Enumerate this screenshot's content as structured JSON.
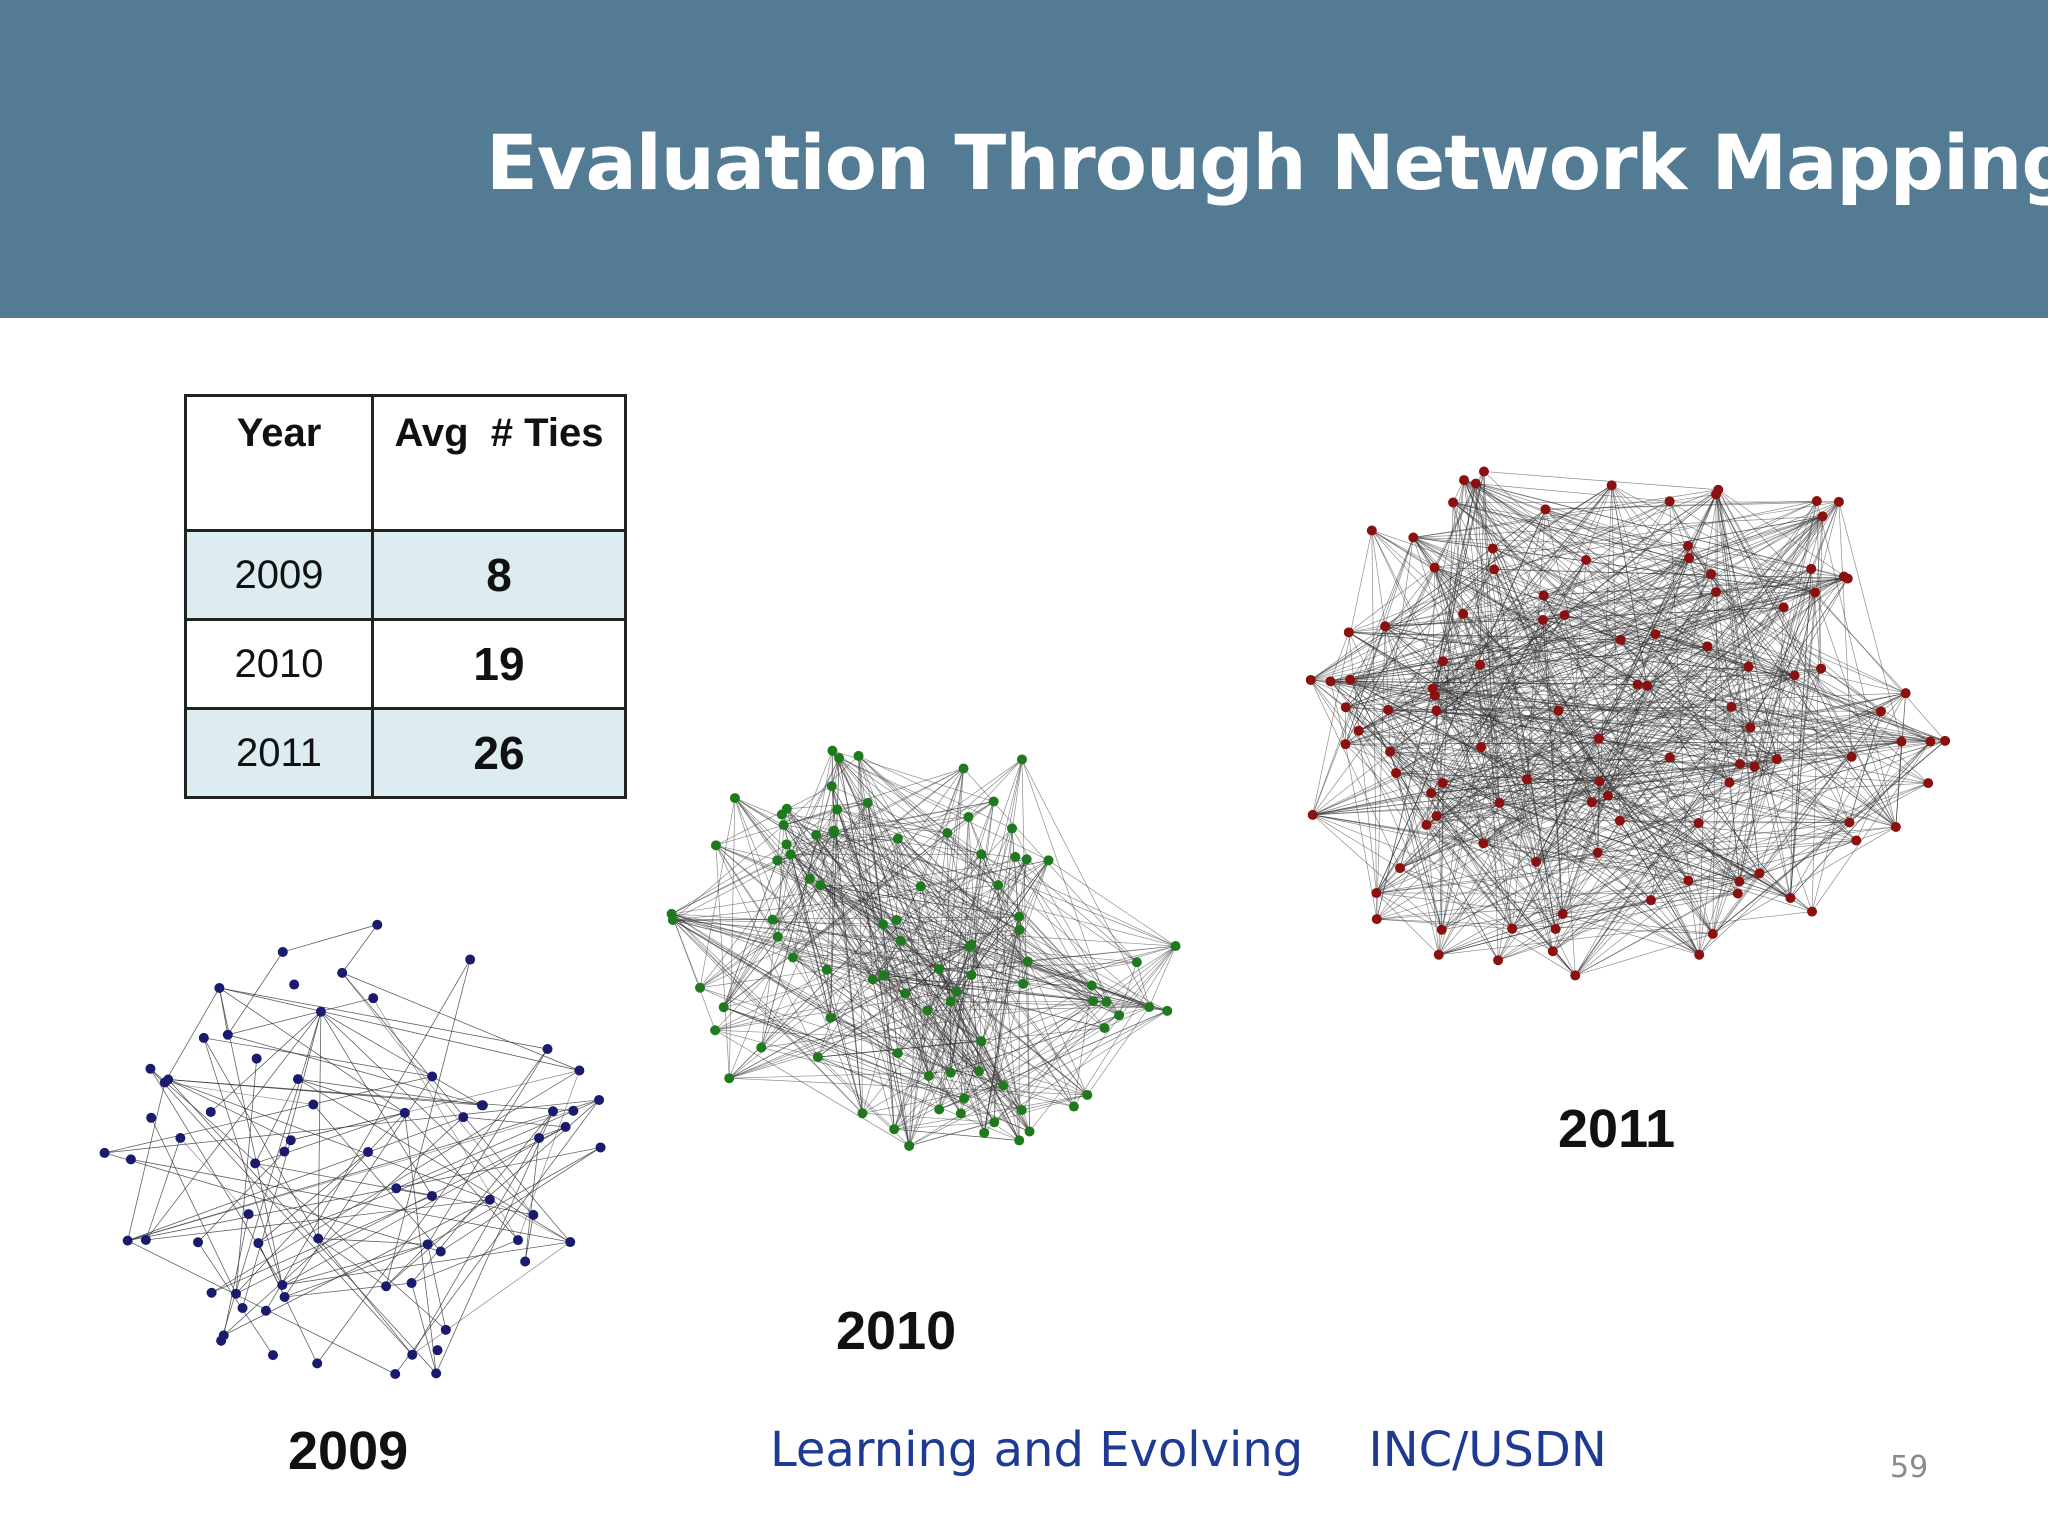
{
  "slide": {
    "title": "Evaluation Through Network Mapping",
    "page_number": "59",
    "header_color": "#537b94"
  },
  "table": {
    "headers": [
      "Year",
      "Avg  # Ties"
    ],
    "rows": [
      {
        "year": "2009",
        "value": "8"
      },
      {
        "year": "2010",
        "value": "19"
      },
      {
        "year": "2011",
        "value": "26"
      }
    ],
    "shade_color": "#dcecf1"
  },
  "networks": [
    {
      "year_label": "2009",
      "node_color": "#1a1a6e"
    },
    {
      "year_label": "2010",
      "node_color": "#1f7a1f"
    },
    {
      "year_label": "2011",
      "node_color": "#8b1010"
    }
  ],
  "footer": {
    "text": "Learning and Evolving",
    "org": "INC/USDN",
    "color": "#1f3a93"
  }
}
